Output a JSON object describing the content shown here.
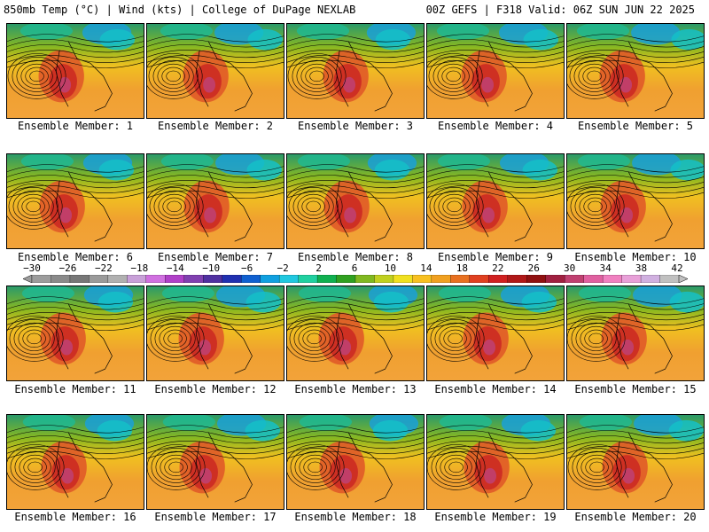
{
  "header": {
    "left": "850mb Temp (°C) | Wind (kts) | College of DuPage NEXLAB",
    "right": "00Z GEFS | F318 Valid: 06Z SUN JUN 22 2025"
  },
  "members": [
    "Ensemble Member: 1",
    "Ensemble Member: 2",
    "Ensemble Member: 3",
    "Ensemble Member: 4",
    "Ensemble Member: 5",
    "Ensemble Member: 6",
    "Ensemble Member: 7",
    "Ensemble Member: 8",
    "Ensemble Member: 9",
    "Ensemble Member: 10",
    "Ensemble Member: 11",
    "Ensemble Member: 12",
    "Ensemble Member: 13",
    "Ensemble Member: 14",
    "Ensemble Member: 15",
    "Ensemble Member: 16",
    "Ensemble Member: 17",
    "Ensemble Member: 18",
    "Ensemble Member: 19",
    "Ensemble Member: 20"
  ],
  "colorbar": {
    "ticks": [
      "−30",
      "−26",
      "−22",
      "−18",
      "−14",
      "−10",
      "−6",
      "−2",
      "2",
      "6",
      "10",
      "14",
      "18",
      "22",
      "26",
      "30",
      "34",
      "38",
      "42"
    ],
    "colors": [
      "#9c9c9c",
      "#8a8a8a",
      "#777777",
      "#9a9a9a",
      "#b0b0b0",
      "#c8a0d8",
      "#d070e0",
      "#b040c8",
      "#8040b0",
      "#5030a0",
      "#2030b0",
      "#1060d0",
      "#10a0e0",
      "#20c8e0",
      "#20d0a0",
      "#10b050",
      "#30a020",
      "#80b820",
      "#c0d020",
      "#f0e020",
      "#f8c020",
      "#f0a020",
      "#e87020",
      "#e04020",
      "#d02020",
      "#b01818",
      "#901010",
      "#a02040",
      "#c04070",
      "#e060a0",
      "#f080c0",
      "#e8a0d8",
      "#d0b0e0",
      "#c0c0c0"
    ]
  }
}
